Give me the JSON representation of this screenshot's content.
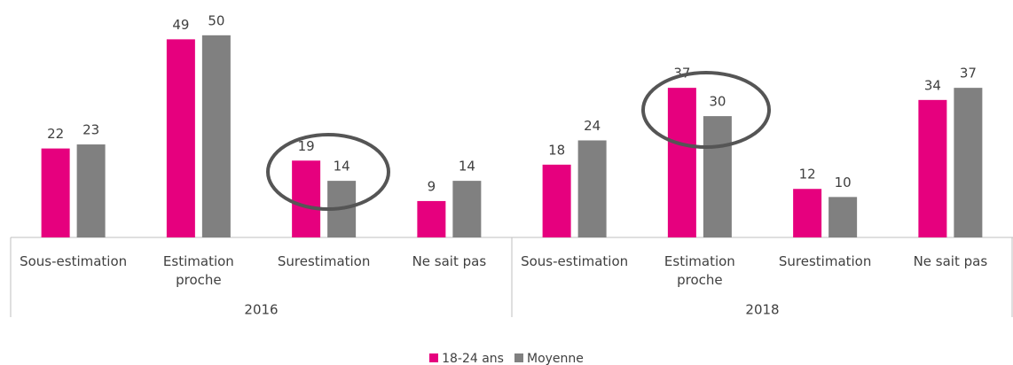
{
  "chart_data": {
    "type": "bar",
    "groups": [
      "2016",
      "2018"
    ],
    "categories": [
      "Sous-estimation",
      "Estimation proche",
      "Surestimation",
      "Ne sait pas",
      "Sous-estimation",
      "Estimation proche",
      "Surestimation",
      "Ne sait pas"
    ],
    "series": [
      {
        "name": "18-24 ans",
        "color": "#e6007e",
        "values": [
          22,
          49,
          19,
          9,
          18,
          37,
          12,
          34
        ]
      },
      {
        "name": "Moyenne",
        "color": "#808080",
        "values": [
          23,
          50,
          14,
          14,
          24,
          30,
          10,
          37
        ]
      }
    ],
    "ylim": [
      0,
      55
    ],
    "grid": false,
    "legend": "bottom"
  }
}
